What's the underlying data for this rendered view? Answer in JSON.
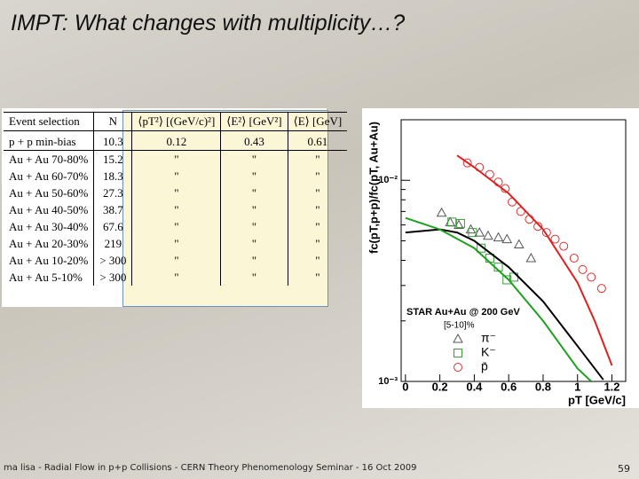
{
  "title": "IMPT: What changes with multiplicity…?",
  "table": {
    "header": [
      "Event selection",
      "N",
      "⟨pT²⟩ [(GeV/c)²]",
      "⟨E²⟩ [GeV²]",
      "⟨E⟩ [GeV]"
    ],
    "rows": [
      [
        "p + p min-bias",
        "10.3",
        "0.12",
        "0.43",
        "0.61"
      ],
      [
        "Au + Au 70-80%",
        "15.2",
        "\"",
        "\"",
        "\""
      ],
      [
        "Au + Au 60-70%",
        "18.3",
        "\"",
        "\"",
        "\""
      ],
      [
        "Au + Au 50-60%",
        "27.3",
        "\"",
        "\"",
        "\""
      ],
      [
        "Au + Au 40-50%",
        "38.7",
        "\"",
        "\"",
        "\""
      ],
      [
        "Au + Au 30-40%",
        "67.6",
        "\"",
        "\"",
        "\""
      ],
      [
        "Au + Au 20-30%",
        "219",
        "\"",
        "\"",
        "\""
      ],
      [
        "Au + Au 10-20%",
        "> 300",
        "\"",
        "\"",
        "\""
      ],
      [
        "Au + Au 5-10%",
        "> 300",
        "\"",
        "\"",
        "\""
      ]
    ]
  },
  "chart_data": {
    "type": "scatter",
    "x_label": "pT [GeV/c]",
    "y_label": "fc(pT,p+p)/fc(pT, Au+Au)",
    "legend_title": "STAR Au+Au @ 200 GeV",
    "legend_subtitle": "[5-10]%",
    "log_y": true,
    "xlim": [
      -0.025,
      1.28
    ],
    "ylim": [
      0.001,
      0.02
    ],
    "xticks": [
      0,
      0.2,
      0.4,
      0.6,
      0.8,
      1,
      1.2
    ],
    "yticks": [
      {
        "value": 0.01,
        "label": "10⁻²"
      },
      {
        "value": 0.001,
        "label": "10⁻³"
      }
    ],
    "series": [
      {
        "name": "π⁻",
        "marker": "triangle",
        "color": "#555555",
        "x": [
          0.21,
          0.26,
          0.31,
          0.38,
          0.43,
          0.48,
          0.54,
          0.59,
          0.66,
          0.73
        ],
        "values": [
          0.0069,
          0.0062,
          0.006,
          0.0057,
          0.0055,
          0.0053,
          0.0052,
          0.0051,
          0.0048,
          0.0041
        ]
      },
      {
        "name": "K⁻",
        "marker": "square",
        "color": "#3a9a3a",
        "x": [
          0.27,
          0.32,
          0.39,
          0.44,
          0.49,
          0.54,
          0.59,
          0.63
        ],
        "values": [
          0.0062,
          0.0061,
          0.0055,
          0.0046,
          0.0041,
          0.0037,
          0.0032,
          0.0033
        ]
      },
      {
        "name": "p̄",
        "marker": "circle",
        "color": "#e03030",
        "x": [
          0.36,
          0.43,
          0.49,
          0.54,
          0.58,
          0.62,
          0.67,
          0.72,
          0.77,
          0.82,
          0.87,
          0.92,
          0.98,
          1.03,
          1.08,
          1.14
        ],
        "values": [
          0.0122,
          0.0116,
          0.0107,
          0.0098,
          0.0091,
          0.0078,
          0.007,
          0.0064,
          0.0059,
          0.0055,
          0.0051,
          0.0047,
          0.0041,
          0.0036,
          0.0033,
          0.0029
        ]
      },
      {
        "marker": "line",
        "color": "#e02020",
        "x": [
          0.3,
          0.4,
          0.6,
          0.8,
          1.0,
          1.1,
          1.2
        ],
        "values": [
          0.0133,
          0.0116,
          0.0086,
          0.0057,
          0.0031,
          0.002,
          0.0012
        ]
      },
      {
        "marker": "line",
        "color": "#000000",
        "x": [
          0,
          0.2,
          0.3,
          0.4,
          0.6,
          0.8,
          1.0,
          1.15
        ],
        "values": [
          0.0055,
          0.0057,
          0.0055,
          0.005,
          0.0037,
          0.0025,
          0.0015,
          0.00102
        ]
      },
      {
        "marker": "line",
        "color": "#20a020",
        "x": [
          0,
          0.2,
          0.4,
          0.6,
          0.8,
          1.0,
          1.08
        ],
        "values": [
          0.0065,
          0.0057,
          0.0046,
          0.0032,
          0.002,
          0.00116,
          0.001
        ]
      }
    ]
  },
  "footer": {
    "text": "ma lisa - Radial Flow in p+p Collisions - CERN Theory Phenomenology Seminar - 16 Oct 2009",
    "page": "59"
  }
}
